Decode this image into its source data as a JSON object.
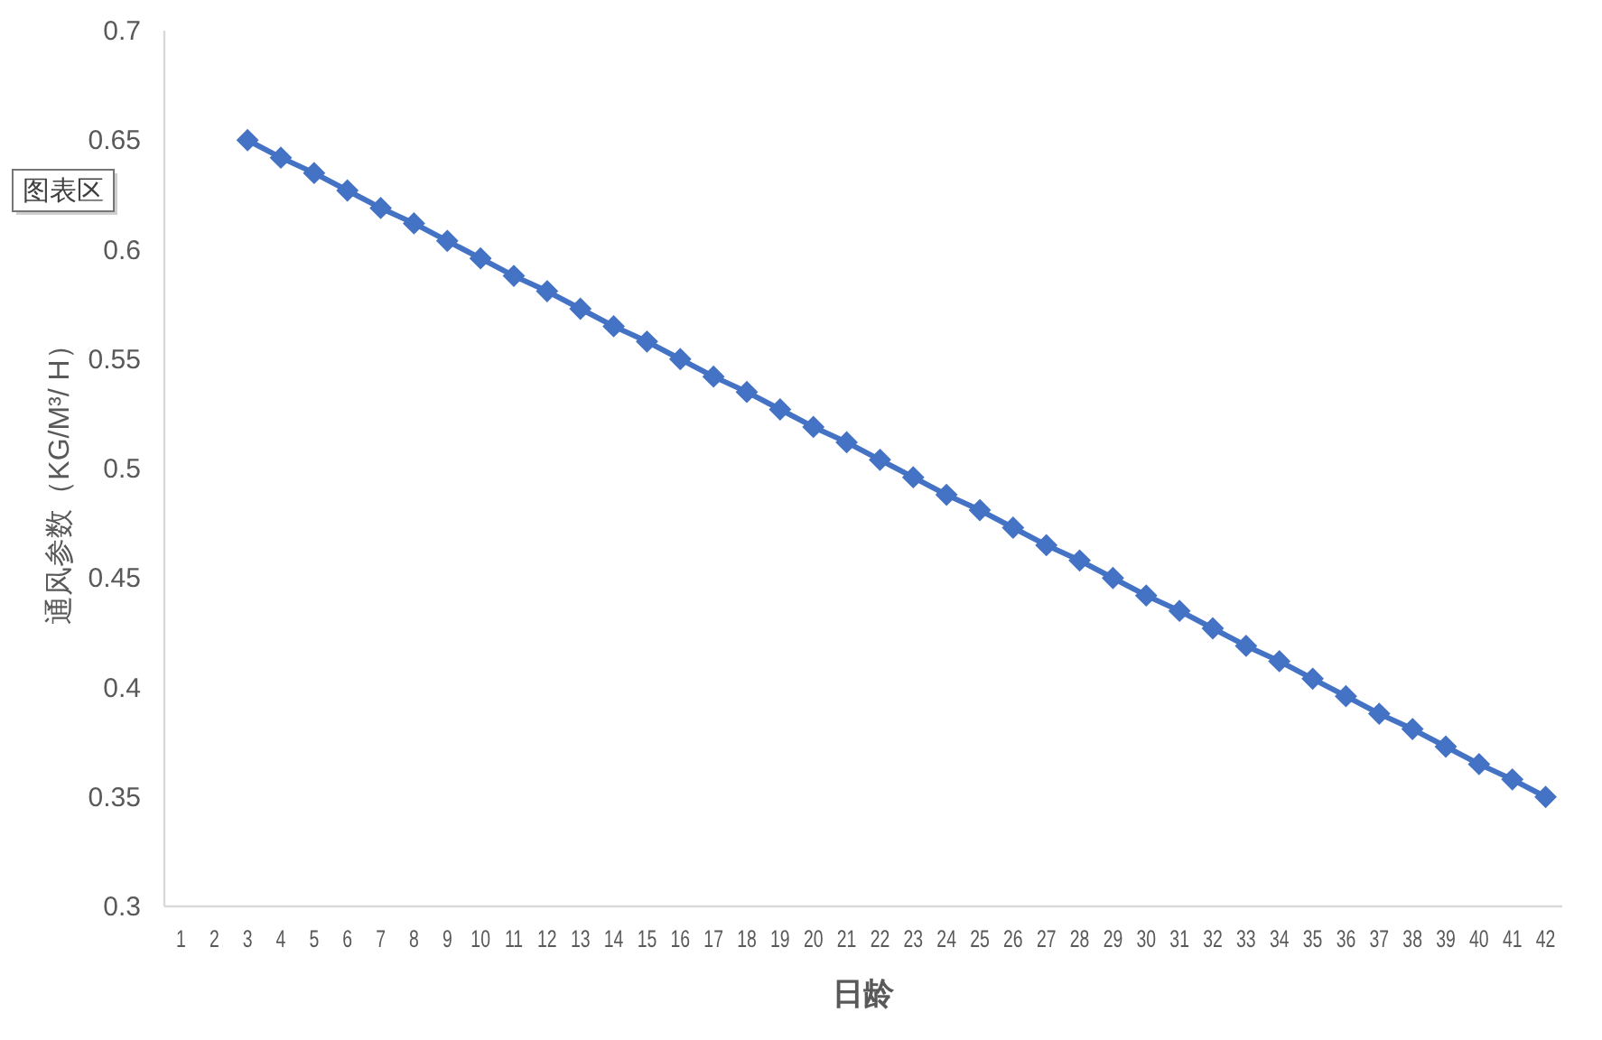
{
  "chart_data": {
    "type": "line",
    "xlabel": "日龄",
    "ylabel": "通风参数（KG/M³/ H）",
    "annotations": [
      "图表区"
    ],
    "x": [
      3,
      4,
      5,
      6,
      7,
      8,
      9,
      10,
      11,
      12,
      13,
      14,
      15,
      16,
      17,
      18,
      19,
      20,
      21,
      22,
      23,
      24,
      25,
      26,
      27,
      28,
      29,
      30,
      31,
      32,
      33,
      34,
      35,
      36,
      37,
      38,
      39,
      40,
      41,
      42
    ],
    "series": [
      {
        "color": "#4472c4",
        "values": [
          0.65,
          0.642,
          0.635,
          0.627,
          0.619,
          0.612,
          0.604,
          0.596,
          0.588,
          0.581,
          0.573,
          0.565,
          0.558,
          0.55,
          0.542,
          0.535,
          0.527,
          0.519,
          0.512,
          0.504,
          0.496,
          0.488,
          0.481,
          0.473,
          0.465,
          0.458,
          0.45,
          0.442,
          0.435,
          0.427,
          0.419,
          0.412,
          0.404,
          0.396,
          0.388,
          0.381,
          0.373,
          0.365,
          0.358,
          0.35
        ]
      }
    ],
    "xlim": [
      0.5,
      42.5
    ],
    "xticks": [
      1,
      2,
      3,
      4,
      5,
      6,
      7,
      8,
      9,
      10,
      11,
      12,
      13,
      14,
      15,
      16,
      17,
      18,
      19,
      20,
      21,
      22,
      23,
      24,
      25,
      26,
      27,
      28,
      29,
      30,
      31,
      32,
      33,
      34,
      35,
      36,
      37,
      38,
      39,
      40,
      41,
      42
    ],
    "ylim": [
      0.3,
      0.7
    ],
    "yticks": [
      0.3,
      0.35,
      0.4,
      0.45,
      0.5,
      0.55,
      0.6,
      0.65,
      0.7
    ],
    "grid": false,
    "marker": "diamond",
    "line_style": "solid"
  }
}
